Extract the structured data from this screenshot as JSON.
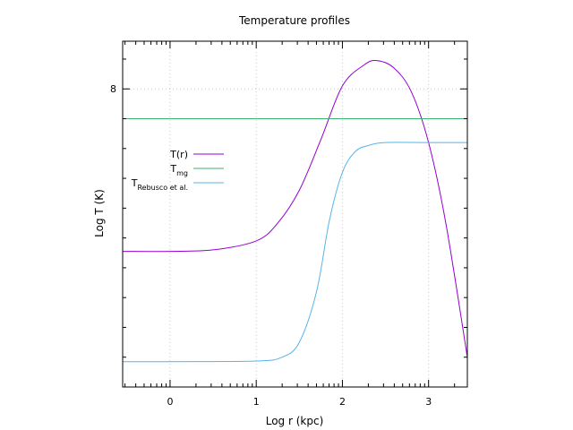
{
  "chart_data": {
    "type": "line",
    "title": "Temperature profiles",
    "xlabel": "Log r (kpc)",
    "ylabel": "Log T (K)",
    "xlim": [
      -0.55,
      3.45
    ],
    "ylim": [
      7.0,
      8.16
    ],
    "x_ticks": [
      "0",
      "1",
      "2",
      "3"
    ],
    "y_ticks": [
      "8"
    ],
    "grid": true,
    "legend_position": "upper-left",
    "legend": [
      {
        "main": "T(r)",
        "sub": ""
      },
      {
        "main": "T",
        "sub": "mg"
      },
      {
        "main": "T",
        "sub": "Rebusco et al."
      }
    ],
    "series": [
      {
        "name": "T(r)",
        "color": "#9400d3",
        "x": [
          -0.55,
          0.0,
          0.5,
          1.0,
          1.25,
          1.5,
          1.75,
          2.0,
          2.25,
          2.4,
          2.6,
          2.8,
          3.0,
          3.2,
          3.45
        ],
        "y": [
          7.455,
          7.455,
          7.46,
          7.49,
          7.55,
          7.66,
          7.83,
          8.01,
          8.08,
          8.095,
          8.07,
          7.99,
          7.82,
          7.55,
          7.1
        ]
      },
      {
        "name": "T_mg",
        "color": "#3cb371",
        "x": [
          -0.55,
          3.45
        ],
        "y": [
          7.9,
          7.9
        ]
      },
      {
        "name": "T_Rebusco et al.",
        "color": "#56b4e9",
        "x": [
          -0.55,
          0.0,
          1.0,
          1.3,
          1.5,
          1.7,
          1.85,
          2.0,
          2.15,
          2.3,
          2.5,
          3.0,
          3.45
        ],
        "y": [
          7.085,
          7.085,
          7.087,
          7.1,
          7.15,
          7.32,
          7.56,
          7.72,
          7.79,
          7.81,
          7.82,
          7.82,
          7.82
        ]
      }
    ]
  }
}
